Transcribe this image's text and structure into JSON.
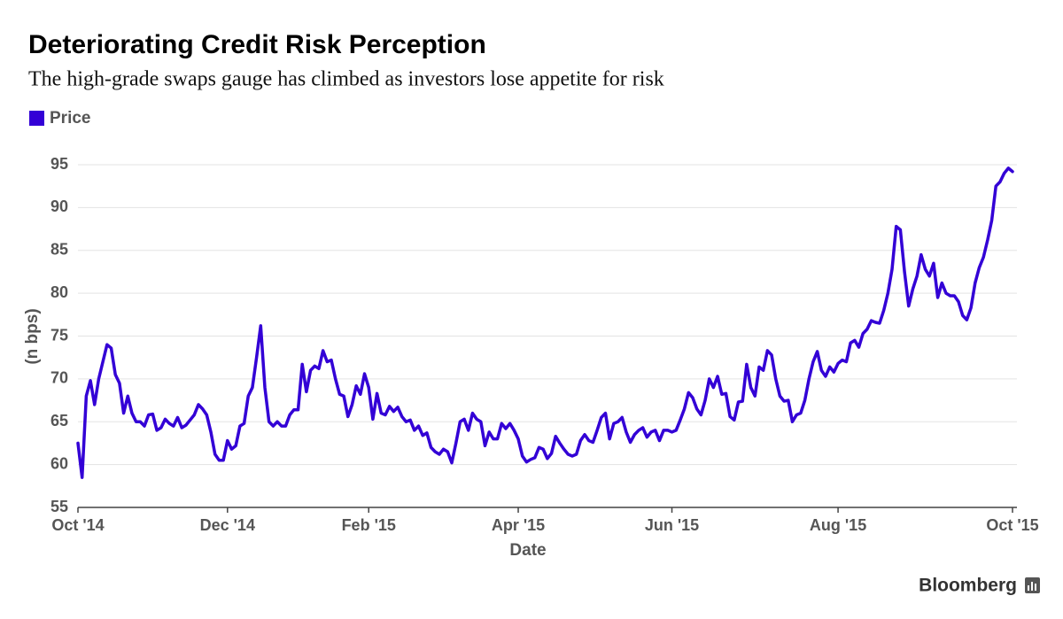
{
  "chart_data": {
    "type": "line",
    "title": "Deteriorating Credit Risk Perception",
    "subtitle": "The high-grade swaps gauge has climbed as investors lose appetite for risk",
    "x_label": "Date",
    "y_label": "(n bps)",
    "source": "Bloomberg",
    "grid": true,
    "legend_position": "top-left",
    "ylim": [
      55,
      95
    ],
    "yticks": [
      55,
      60,
      65,
      70,
      75,
      80,
      85,
      90,
      95
    ],
    "categories": [
      "Oct '14",
      null,
      null,
      null,
      null,
      null,
      null,
      null,
      null,
      null,
      null,
      null,
      null,
      null,
      null,
      null,
      null,
      null,
      null,
      null,
      null,
      null,
      null,
      null,
      null,
      null,
      null,
      null,
      null,
      null,
      null,
      null,
      null,
      null,
      null,
      null,
      "Dec '14",
      null,
      null,
      null,
      null,
      null,
      null,
      null,
      null,
      null,
      null,
      null,
      null,
      null,
      null,
      null,
      null,
      null,
      null,
      null,
      null,
      null,
      null,
      null,
      null,
      null,
      null,
      null,
      null,
      null,
      null,
      null,
      null,
      null,
      "Feb '15",
      null,
      null,
      null,
      null,
      null,
      null,
      null,
      null,
      null,
      null,
      null,
      null,
      null,
      null,
      null,
      null,
      null,
      null,
      null,
      null,
      null,
      null,
      null,
      null,
      null,
      null,
      null,
      null,
      null,
      null,
      null,
      null,
      null,
      null,
      null,
      "Apr '15",
      null,
      null,
      null,
      null,
      null,
      null,
      null,
      null,
      null,
      null,
      null,
      null,
      null,
      null,
      null,
      null,
      null,
      null,
      null,
      null,
      null,
      null,
      null,
      null,
      null,
      null,
      null,
      null,
      null,
      null,
      null,
      null,
      null,
      null,
      null,
      null,
      "Jun '15",
      null,
      null,
      null,
      null,
      null,
      null,
      null,
      null,
      null,
      null,
      null,
      null,
      null,
      null,
      null,
      null,
      null,
      null,
      null,
      null,
      null,
      null,
      null,
      null,
      null,
      null,
      null,
      null,
      null,
      null,
      null,
      null,
      null,
      null,
      null,
      null,
      null,
      null,
      null,
      "Aug '15",
      null,
      null,
      null,
      null,
      null,
      null,
      null,
      null,
      null,
      null,
      null,
      null,
      null,
      null,
      null,
      null,
      null,
      null,
      null,
      null,
      null,
      null,
      null,
      null,
      null,
      null,
      null,
      null,
      null,
      null,
      null,
      null,
      null,
      null,
      null,
      null,
      null,
      null,
      null,
      null,
      null,
      "Oct '15"
    ],
    "series": [
      {
        "name": "Price",
        "color": "#3300d6",
        "values": [
          62.5,
          58.5,
          68,
          69.8,
          67,
          70,
          72,
          74,
          73.6,
          70.5,
          69.5,
          66,
          68,
          66,
          65,
          65,
          64.5,
          65.8,
          65.9,
          64,
          64.3,
          65.3,
          64.8,
          64.5,
          65.5,
          64.3,
          64.6,
          65.2,
          65.8,
          67,
          66.5,
          65.8,
          63.8,
          61.2,
          60.5,
          60.5,
          62.8,
          61.8,
          62.2,
          64.5,
          64.8,
          68,
          69,
          72.5,
          76.2,
          69,
          65,
          64.5,
          65,
          64.5,
          64.5,
          65.8,
          66.4,
          66.4,
          71.7,
          68.5,
          71,
          71.5,
          71.2,
          73.3,
          72,
          72.2,
          70,
          68.2,
          68,
          65.6,
          67,
          69.2,
          68.2,
          70.6,
          69,
          65.3,
          68.3,
          66,
          65.8,
          66.8,
          66.2,
          66.7,
          65.6,
          65,
          65.2,
          64,
          64.5,
          63.4,
          63.7,
          62,
          61.5,
          61.2,
          61.8,
          61.5,
          60.2,
          62.5,
          65,
          65.3,
          64,
          66,
          65.3,
          65,
          62.2,
          63.8,
          63,
          63,
          64.8,
          64.2,
          64.8,
          64,
          63,
          61,
          60.3,
          60.6,
          60.8,
          62,
          61.8,
          60.7,
          61.3,
          63.3,
          62.5,
          61.8,
          61.2,
          61,
          61.2,
          62.8,
          63.5,
          62.8,
          62.6,
          64,
          65.5,
          66,
          63,
          64.8,
          65,
          65.5,
          63.8,
          62.6,
          63.5,
          64,
          64.3,
          63.2,
          63.8,
          64,
          62.8,
          64,
          64,
          63.8,
          64,
          65.2,
          66.5,
          68.4,
          67.8,
          66.5,
          65.8,
          67.5,
          70,
          69,
          70.3,
          68.2,
          68.3,
          65.6,
          65.2,
          67.3,
          67.4,
          71.7,
          69,
          68,
          71.4,
          71,
          73.3,
          72.8,
          70,
          68,
          67.4,
          67.5,
          65,
          65.8,
          66,
          67.5,
          70,
          72,
          73.2,
          71,
          70.3,
          71.4,
          70.8,
          71.8,
          72.2,
          72,
          74.2,
          74.5,
          73.7,
          75.3,
          75.8,
          76.8,
          76.6,
          76.5,
          78,
          80,
          82.8,
          87.8,
          87.4,
          82.5,
          78.5,
          80.5,
          82,
          84.5,
          82.8,
          82,
          83.5,
          79.5,
          81.2,
          80,
          79.7,
          79.7,
          79,
          77.4,
          76.9,
          78.3,
          81.2,
          83,
          84.2,
          86.2,
          88.5,
          92.5,
          93,
          94,
          94.6,
          94.2
        ]
      }
    ]
  }
}
